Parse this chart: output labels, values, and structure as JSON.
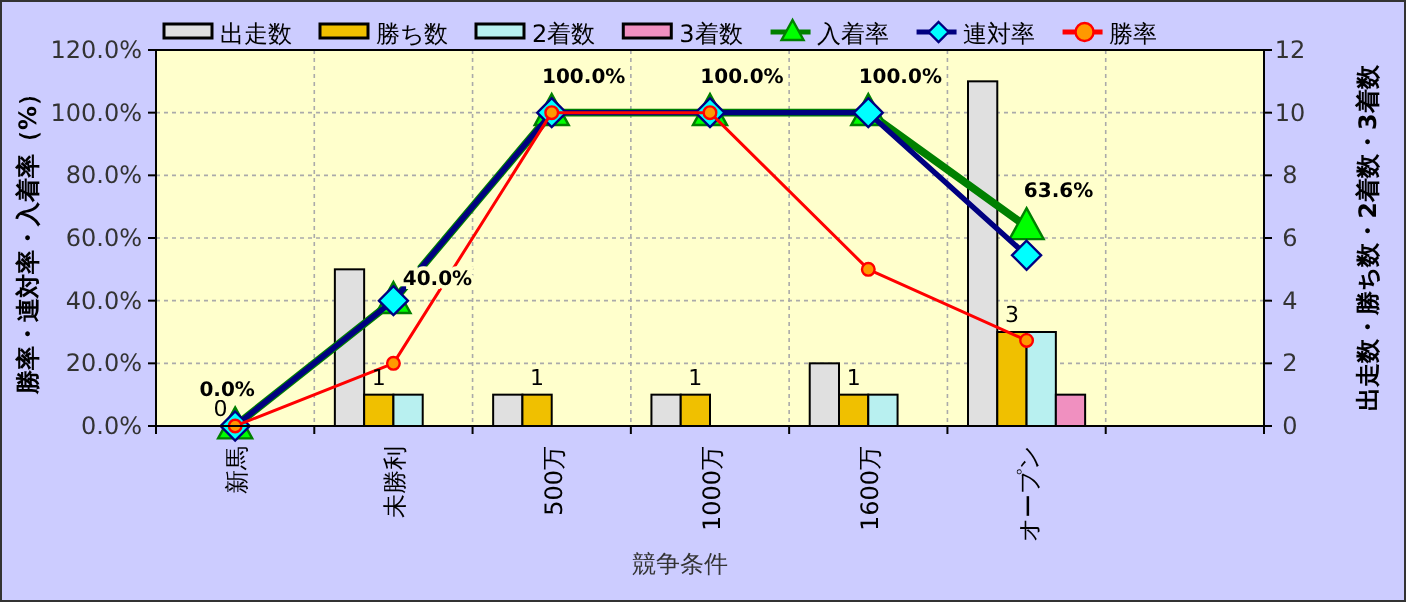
{
  "chart_data": {
    "type": "bar",
    "categories": [
      "新馬",
      "未勝利",
      "500万",
      "1000万",
      "1600万",
      "オープン",
      null
    ],
    "xlabel": "競争条件",
    "ylabel": "勝率・連対率・入着率（%）",
    "y2label": "出走数・勝ち数・2着数・3着数",
    "ylim": [
      0,
      120
    ],
    "yticks": [
      {
        "value": 0,
        "label": "0.0%"
      },
      {
        "value": 20,
        "label": "20.0%"
      },
      {
        "value": 40,
        "label": "40.0%"
      },
      {
        "value": 60,
        "label": "60.0%"
      },
      {
        "value": 80,
        "label": "80.0%"
      },
      {
        "value": 100,
        "label": "100.0%"
      },
      {
        "value": 120,
        "label": "120.0%"
      }
    ],
    "y2lim": [
      0,
      12
    ],
    "y2ticks": [
      0,
      2,
      4,
      6,
      8,
      10,
      12
    ],
    "grid": true,
    "legend": "top",
    "series": [
      {
        "name": "出走数",
        "axis": "y2",
        "color": "#e0e0e0",
        "values": [
          0,
          5,
          1,
          1,
          2,
          11,
          null
        ]
      },
      {
        "name": "勝ち数",
        "axis": "y2",
        "color": "#f0c000",
        "values": [
          0,
          1,
          1,
          1,
          1,
          3,
          null
        ],
        "value_labels": [
          "0",
          "1",
          "1",
          "1",
          "1",
          "3",
          null
        ]
      },
      {
        "name": "2着数",
        "axis": "y2",
        "color": "#b8f0f0",
        "values": [
          0,
          1,
          0,
          0,
          1,
          3,
          null
        ]
      },
      {
        "name": "3着数",
        "axis": "y2",
        "color": "#f090c0",
        "values": [
          0,
          0,
          0,
          0,
          0,
          1,
          null
        ]
      },
      {
        "name": "入着率",
        "type": "line",
        "color": "#008000",
        "marker": "triangle",
        "values": [
          0,
          40,
          100,
          100,
          100,
          63.6,
          null
        ],
        "value_labels": [
          "0.0%",
          "40.0%",
          "100.0%",
          "100.0%",
          "100.0%",
          "63.6%",
          null
        ]
      },
      {
        "name": "連対率",
        "type": "line",
        "color": "#000080",
        "marker": "diamond",
        "values": [
          0,
          40,
          100,
          100,
          100,
          54.5,
          null
        ]
      },
      {
        "name": "勝率",
        "type": "line",
        "color": "#ff0000",
        "marker": "circle",
        "values": [
          0,
          20,
          100,
          100,
          50,
          27.3,
          null
        ]
      }
    ]
  }
}
